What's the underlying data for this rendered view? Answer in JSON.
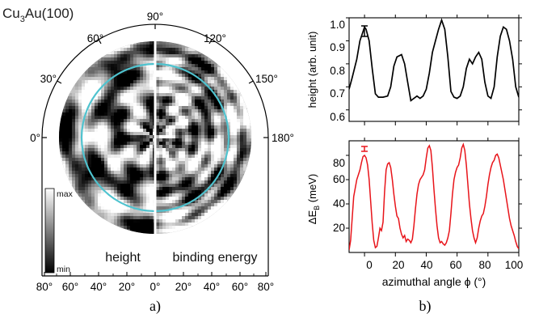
{
  "figure": {
    "sample_prefix": "Cu",
    "sample_sub": "3",
    "sample_suffix": "Au(100)",
    "panel_a_label": "a)",
    "panel_b_label": "b)"
  },
  "polar_map": {
    "angle_labels": [
      "0°",
      "30°",
      "60°",
      "90°",
      "120°",
      "150°",
      "180°"
    ],
    "radial_tick_labels": [
      "80°",
      "60°",
      "40°",
      "20°",
      "0°",
      "20°",
      "40°",
      "60°",
      "80°"
    ],
    "left_half_label": "height",
    "right_half_label": "binding energy",
    "colorbar_max_label": "max",
    "colorbar_min_label": "min",
    "circle_color": "#4fc3cf",
    "cmap": [
      "#000000",
      "#ffffff"
    ]
  },
  "chart_data": [
    {
      "type": "line",
      "ylabel": "height (arb. unit)",
      "xlim": [
        -10,
        100
      ],
      "ylim": [
        0.55,
        1.0
      ],
      "yticks": [
        0.6,
        0.7,
        0.8,
        0.9,
        1.0
      ],
      "ytick_labels": [
        "0.6",
        "0.7",
        "0.8",
        "0.9",
        "1.0"
      ],
      "error_bar_color": "#000000",
      "series": [
        {
          "color": "#000000",
          "x": [
            -10,
            -8,
            -5,
            -3,
            -1,
            0,
            1,
            3,
            5,
            7,
            9,
            12,
            15,
            17,
            19,
            21,
            24,
            26,
            28,
            30,
            32,
            34,
            36,
            38,
            40,
            42,
            44,
            46,
            48,
            50,
            52,
            54,
            56,
            58,
            60,
            62,
            64,
            66,
            68,
            70,
            72,
            74,
            76,
            78,
            80,
            82,
            84,
            86,
            88,
            90,
            92,
            94,
            96,
            98,
            100
          ],
          "y": [
            0.69,
            0.74,
            0.82,
            0.9,
            0.94,
            0.96,
            0.95,
            0.9,
            0.78,
            0.67,
            0.655,
            0.655,
            0.66,
            0.7,
            0.79,
            0.83,
            0.84,
            0.8,
            0.72,
            0.64,
            0.65,
            0.66,
            0.65,
            0.66,
            0.69,
            0.76,
            0.85,
            0.9,
            0.95,
            0.99,
            0.95,
            0.83,
            0.68,
            0.655,
            0.65,
            0.66,
            0.7,
            0.78,
            0.82,
            0.8,
            0.83,
            0.85,
            0.82,
            0.72,
            0.66,
            0.65,
            0.7,
            0.83,
            0.92,
            0.96,
            0.95,
            0.9,
            0.82,
            0.7,
            0.655
          ]
        }
      ]
    },
    {
      "type": "line",
      "xlabel": "azimuthal angle ϕ (°)",
      "ylabel_main": "ΔE",
      "ylabel_sub": "B",
      "ylabel_unit": " (meV)",
      "xlim": [
        -10,
        100
      ],
      "ylim": [
        0,
        92
      ],
      "xticks": [
        0,
        20,
        40,
        60,
        80,
        100
      ],
      "xtick_labels": [
        "0",
        "20",
        "40",
        "60",
        "80",
        "100"
      ],
      "yticks": [
        20,
        40,
        60,
        80
      ],
      "ytick_labels": [
        "20",
        "40",
        "60",
        "80"
      ],
      "error_bar_color": "#e8141a",
      "series": [
        {
          "color": "#e8141a",
          "x": [
            -10,
            -9,
            -8,
            -7,
            -5,
            -3,
            -2,
            -1,
            0,
            1,
            2,
            3,
            4,
            5,
            6,
            7,
            8,
            9,
            10,
            11,
            12,
            13,
            14,
            15,
            16,
            17,
            18,
            19,
            20,
            21,
            22,
            23,
            24,
            25,
            26,
            27,
            28,
            29,
            30,
            31,
            32,
            33,
            34,
            35,
            36,
            37,
            38,
            39,
            40,
            41,
            42,
            43,
            44,
            45,
            46,
            47,
            48,
            49,
            50,
            51,
            52,
            53,
            54,
            55,
            56,
            57,
            58,
            59,
            60,
            61,
            62,
            63,
            64,
            65,
            66,
            67,
            68,
            69,
            70,
            71,
            72,
            73,
            74,
            75,
            76,
            77,
            78,
            79,
            80,
            81,
            82,
            83,
            84,
            85,
            86,
            87,
            88,
            89,
            90,
            91,
            92,
            93,
            94,
            95,
            96,
            97,
            98,
            99,
            100
          ],
          "y": [
            2,
            10,
            28,
            46,
            60,
            68,
            74,
            79,
            80,
            78,
            72,
            60,
            42,
            24,
            10,
            4,
            5,
            12,
            20,
            18,
            25,
            50,
            68,
            73,
            74,
            70,
            60,
            48,
            38,
            30,
            28,
            20,
            15,
            12,
            14,
            9,
            11,
            10,
            8,
            11,
            22,
            36,
            48,
            56,
            60,
            62,
            64,
            68,
            78,
            86,
            88,
            84,
            70,
            52,
            36,
            22,
            12,
            8,
            9,
            7,
            6,
            8,
            12,
            18,
            32,
            48,
            60,
            66,
            70,
            72,
            78,
            86,
            89,
            84,
            72,
            56,
            40,
            28,
            18,
            12,
            8,
            12,
            20,
            26,
            30,
            32,
            38,
            46,
            56,
            64,
            70,
            74,
            76,
            80,
            81,
            78,
            72,
            66,
            60,
            52,
            44,
            36,
            28,
            22,
            18,
            14,
            9,
            5,
            3
          ]
        }
      ]
    }
  ]
}
